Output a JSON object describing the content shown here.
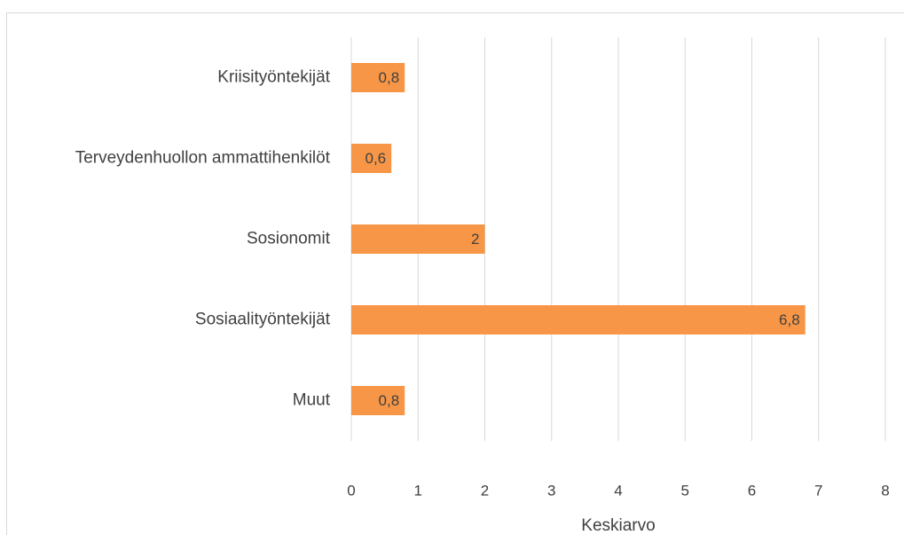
{
  "chart_data": {
    "type": "barh",
    "categories": [
      "Kriisityöntekijät",
      "Terveydenhuollon ammattihenkilöt",
      "Sosionomit",
      "Sosiaalityöntekijät",
      "Muut"
    ],
    "values": [
      0.8,
      0.6,
      2,
      6.8,
      0.8
    ],
    "value_labels": [
      "0,8",
      "0,6",
      "2",
      "6,8",
      "0,8"
    ],
    "color": "#f79646",
    "xlabel": "Keskiarvo",
    "xlim": [
      0,
      8
    ],
    "xticks": [
      0,
      1,
      2,
      3,
      4,
      5,
      6,
      7,
      8
    ],
    "grid": true
  }
}
